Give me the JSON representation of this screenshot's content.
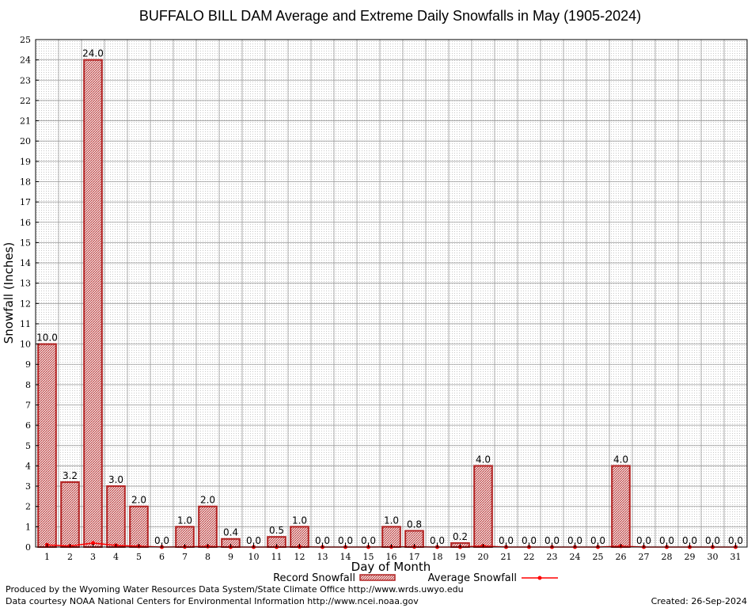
{
  "chart_data": {
    "type": "bar",
    "title": "BUFFALO BILL DAM Average and Extreme Daily Snowfalls in May (1905-2024)",
    "xlabel": "Day of Month",
    "ylabel": "Snowfall (Inches)",
    "ylim": [
      0,
      25
    ],
    "y_ticks": [
      "0",
      "1",
      "2",
      "3",
      "4",
      "5",
      "6",
      "7",
      "8",
      "9",
      "10",
      "11",
      "12",
      "13",
      "14",
      "15",
      "16",
      "17",
      "18",
      "19",
      "20",
      "21",
      "22",
      "23",
      "24",
      "25"
    ],
    "categories": [
      "1",
      "2",
      "3",
      "4",
      "5",
      "6",
      "7",
      "8",
      "9",
      "10",
      "11",
      "12",
      "13",
      "14",
      "15",
      "16",
      "17",
      "18",
      "19",
      "20",
      "21",
      "22",
      "23",
      "24",
      "25",
      "26",
      "27",
      "28",
      "29",
      "30",
      "31"
    ],
    "series": [
      {
        "name": "Record Snowfall",
        "kind": "bar",
        "color": "#b22222",
        "values": [
          10.0,
          3.2,
          24.0,
          3.0,
          2.0,
          0.0,
          1.0,
          2.0,
          0.4,
          0.0,
          0.5,
          1.0,
          0.0,
          0.0,
          0.0,
          1.0,
          0.8,
          0.0,
          0.2,
          4.0,
          0.0,
          0.0,
          0.0,
          0.0,
          0.0,
          4.0,
          0.0,
          0.0,
          0.0,
          0.0,
          0.0
        ],
        "labels": [
          "10.0",
          "3.2",
          "24.0",
          "3.0",
          "2.0",
          "0.0",
          "1.0",
          "2.0",
          "0.4",
          "0.0",
          "0.5",
          "1.0",
          "0.0",
          "0.0",
          "0.0",
          "1.0",
          "0.8",
          "0.0",
          "0.2",
          "4.0",
          "0.0",
          "0.0",
          "0.0",
          "0.0",
          "0.0",
          "4.0",
          "0.0",
          "0.0",
          "0.0",
          "0.0",
          "0.0"
        ]
      },
      {
        "name": "Average Snowfall",
        "kind": "line",
        "color": "#ff0000",
        "values": [
          0.1,
          0.05,
          0.2,
          0.08,
          0.04,
          0.0,
          0.01,
          0.03,
          0.0,
          0.0,
          0.0,
          0.01,
          0.0,
          0.0,
          0.0,
          0.01,
          0.01,
          0.0,
          0.0,
          0.05,
          0.0,
          0.0,
          0.0,
          0.0,
          0.0,
          0.04,
          0.0,
          0.0,
          0.0,
          0.0,
          0.0
        ]
      }
    ],
    "grid": true,
    "legend": "bottom"
  },
  "footer": {
    "produced_by": "Produced by the Wyoming Water Resources Data System/State Climate Office http://www.wrds.uwyo.edu",
    "courtesy": "Data courtesy NOAA National Centers for Environmental Information http://www.ncei.noaa.gov",
    "created": "Created:  26-Sep-2024"
  }
}
